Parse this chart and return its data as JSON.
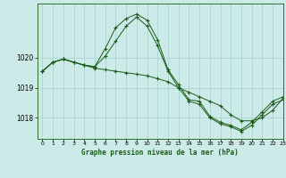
{
  "title": "Graphe pression niveau de la mer (hPa)",
  "background_color": "#cceae7",
  "grid_color": "#aad4d0",
  "line_color": "#1a5c1a",
  "xlim": [
    -0.5,
    23
  ],
  "ylim": [
    1017.3,
    1021.8
  ],
  "yticks": [
    1018,
    1019,
    1020
  ],
  "xticks": [
    0,
    1,
    2,
    3,
    4,
    5,
    6,
    7,
    8,
    9,
    10,
    11,
    12,
    13,
    14,
    15,
    16,
    17,
    18,
    19,
    20,
    21,
    22,
    23
  ],
  "line1_x": [
    0,
    1,
    2,
    3,
    4,
    5,
    6,
    7,
    8,
    9,
    10,
    11,
    12,
    13,
    14,
    15,
    16,
    17,
    18,
    19,
    20,
    21,
    22,
    23
  ],
  "line1_y": [
    1019.55,
    1019.85,
    1019.95,
    1019.85,
    1019.75,
    1019.7,
    1020.3,
    1021.0,
    1021.3,
    1021.45,
    1021.25,
    1020.6,
    1019.6,
    1019.1,
    1018.6,
    1018.55,
    1018.05,
    1017.85,
    1017.75,
    1017.6,
    1017.85,
    1018.2,
    1018.55,
    1018.7
  ],
  "line2_x": [
    0,
    1,
    2,
    3,
    4,
    5,
    6,
    7,
    8,
    9,
    10,
    11,
    12,
    13,
    14,
    15,
    16,
    17,
    18,
    19,
    20,
    21,
    22,
    23
  ],
  "line2_y": [
    1019.55,
    1019.85,
    1019.95,
    1019.85,
    1019.75,
    1019.7,
    1020.05,
    1020.55,
    1021.05,
    1021.35,
    1021.05,
    1020.4,
    1019.55,
    1019.0,
    1018.55,
    1018.45,
    1018.0,
    1017.8,
    1017.7,
    1017.55,
    1017.75,
    1018.1,
    1018.45,
    1018.6
  ],
  "line3_x": [
    0,
    1,
    2,
    3,
    4,
    5,
    6,
    7,
    8,
    9,
    10,
    11,
    12,
    13,
    14,
    15,
    16,
    17,
    18,
    19,
    20,
    21,
    22,
    23
  ],
  "line3_y": [
    1019.55,
    1019.85,
    1019.95,
    1019.85,
    1019.75,
    1019.65,
    1019.6,
    1019.55,
    1019.5,
    1019.45,
    1019.4,
    1019.3,
    1019.2,
    1019.0,
    1018.85,
    1018.7,
    1018.55,
    1018.4,
    1018.1,
    1017.9,
    1017.9,
    1018.0,
    1018.25,
    1018.65
  ]
}
